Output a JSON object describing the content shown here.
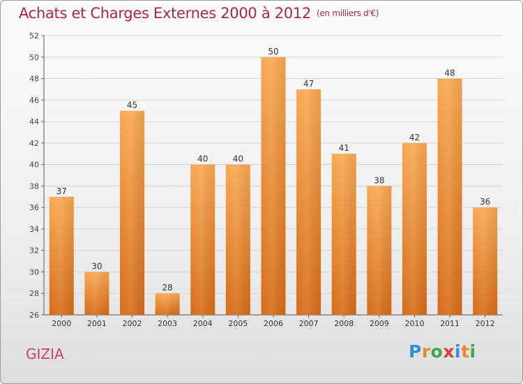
{
  "header": {
    "title": "Achats et Charges Externes 2000 à 2012",
    "unit": "(en milliers d'€)"
  },
  "footer": {
    "commune": "GIZIA",
    "logo": "Proxiti"
  },
  "colors": {
    "title": "#b0234d",
    "bar_light": "#f7a24d",
    "bar_dark": "#d96e1a",
    "commune": "#d0415f"
  },
  "chart_data": {
    "type": "bar",
    "title": "Achats et Charges Externes 2000 à 2012",
    "subtitle": "(en milliers d'€)",
    "xlabel": "",
    "ylabel": "",
    "categories": [
      "2000",
      "2001",
      "2002",
      "2003",
      "2004",
      "2005",
      "2006",
      "2007",
      "2008",
      "2009",
      "2010",
      "2011",
      "2012"
    ],
    "values": [
      37,
      30,
      45,
      28,
      40,
      40,
      50,
      47,
      41,
      38,
      42,
      48,
      36
    ],
    "ylim": [
      26,
      52
    ],
    "yticks": [
      26,
      28,
      30,
      32,
      34,
      36,
      38,
      40,
      42,
      44,
      46,
      48,
      50,
      52
    ],
    "grid": true,
    "legend": "none"
  }
}
